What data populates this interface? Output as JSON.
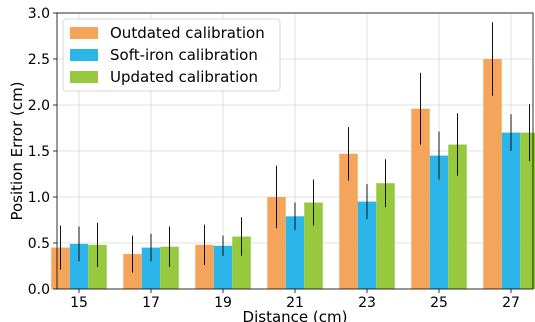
{
  "chart_data": {
    "type": "bar",
    "xlabel": "Distance (cm)",
    "ylabel": "Position Error (cm)",
    "ylim": [
      0,
      3.0
    ],
    "yticks": [
      "0.0",
      "0.5",
      "1.0",
      "1.5",
      "2.0",
      "2.5",
      "3.0"
    ],
    "categories": [
      "15",
      "17",
      "19",
      "21",
      "23",
      "25",
      "27"
    ],
    "grid": true,
    "legend_position": "top-left",
    "series": [
      {
        "name": "Outdated calibration",
        "color": "#f5a55a",
        "values": [
          0.45,
          0.38,
          0.48,
          1.0,
          1.47,
          1.96,
          2.5
        ],
        "error": [
          0.24,
          0.2,
          0.22,
          0.34,
          0.29,
          0.39,
          0.4
        ]
      },
      {
        "name": "Soft-iron calibration",
        "color": "#2bb5e8",
        "values": [
          0.49,
          0.45,
          0.47,
          0.79,
          0.95,
          1.45,
          1.7
        ],
        "error": [
          0.19,
          0.15,
          0.11,
          0.15,
          0.19,
          0.26,
          0.2
        ]
      },
      {
        "name": "Updated calibration",
        "color": "#96c93d",
        "values": [
          0.48,
          0.46,
          0.57,
          0.94,
          1.15,
          1.57,
          1.7
        ],
        "error": [
          0.24,
          0.22,
          0.21,
          0.25,
          0.26,
          0.34,
          0.31
        ]
      }
    ]
  }
}
